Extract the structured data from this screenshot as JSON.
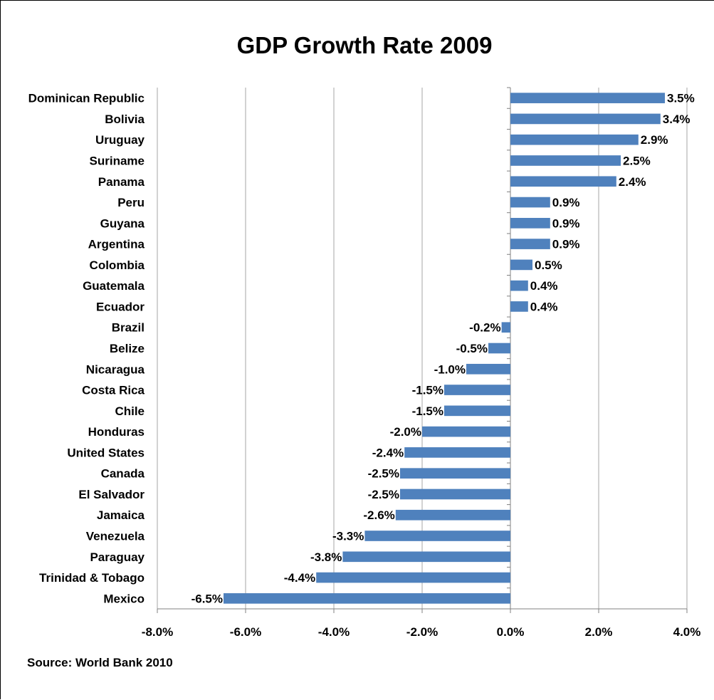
{
  "chart_data": {
    "type": "bar",
    "orientation": "horizontal",
    "title": "GDP Growth Rate 2009",
    "source": "Source: World Bank 2010",
    "categories": [
      "Dominican Republic",
      "Bolivia",
      "Uruguay",
      "Suriname",
      "Panama",
      "Peru",
      "Guyana",
      "Argentina",
      "Colombia",
      "Guatemala",
      "Ecuador",
      "Brazil",
      "Belize",
      "Nicaragua",
      "Costa Rica",
      "Chile",
      "Honduras",
      "United States",
      "Canada",
      "El Salvador",
      "Jamaica",
      "Venezuela",
      "Paraguay",
      "Trinidad & Tobago",
      "Mexico"
    ],
    "values": [
      3.5,
      3.4,
      2.9,
      2.5,
      2.4,
      0.9,
      0.9,
      0.9,
      0.5,
      0.4,
      0.4,
      -0.2,
      -0.5,
      -1.0,
      -1.5,
      -1.5,
      -2.0,
      -2.4,
      -2.5,
      -2.5,
      -2.6,
      -3.3,
      -3.8,
      -4.4,
      -6.5
    ],
    "data_labels": [
      "3.5%",
      "3.4%",
      "2.9%",
      "2.5%",
      "2.4%",
      "0.9%",
      "0.9%",
      "0.9%",
      "0.5%",
      "0.4%",
      "0.4%",
      "-0.2%",
      "-0.5%",
      "-1.0%",
      "-1.5%",
      "-1.5%",
      "-2.0%",
      "-2.4%",
      "-2.5%",
      "-2.5%",
      "-2.6%",
      "-3.3%",
      "-3.8%",
      "-4.4%",
      "-6.5%"
    ],
    "xlim": [
      -8,
      4
    ],
    "xticks": [
      -8,
      -6,
      -4,
      -2,
      0,
      2,
      4
    ],
    "xtick_labels": [
      "-8.0%",
      "-6.0%",
      "-4.0%",
      "-2.0%",
      "0.0%",
      "2.0%",
      "4.0%"
    ],
    "grid": "vertical",
    "legend": "none",
    "bar_color": "#4F81BD",
    "grid_color": "#A6A6A6"
  }
}
